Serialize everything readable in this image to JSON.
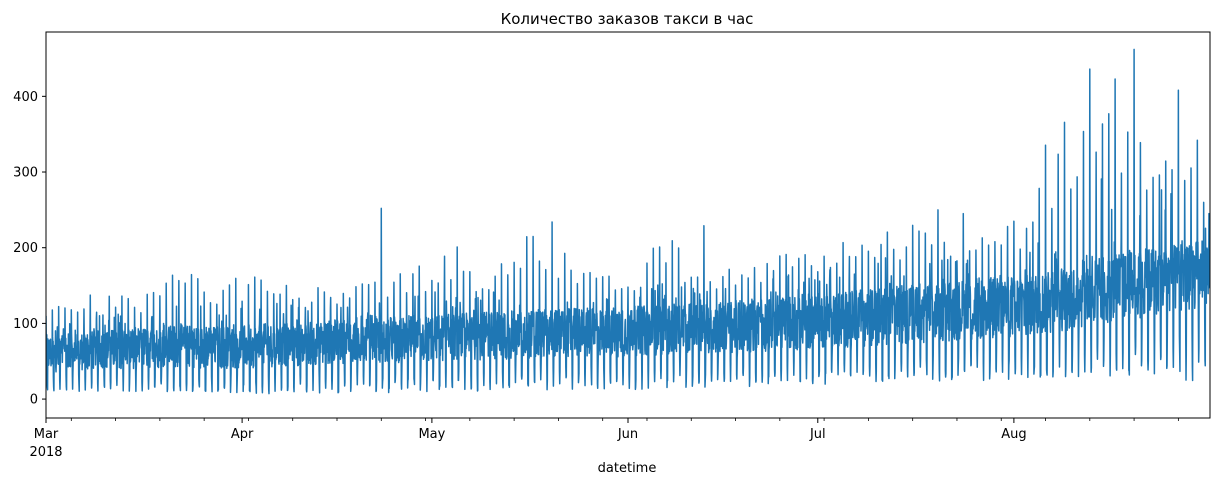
{
  "chart_data": {
    "type": "line",
    "title": "Количество заказов такси в час",
    "xlabel": "datetime",
    "ylabel": "",
    "x_range": [
      "2018-03-01",
      "2018-08-31"
    ],
    "ylim": [
      -25,
      485
    ],
    "y_ticks": [
      0,
      100,
      200,
      300,
      400
    ],
    "x_major_ticks": [
      {
        "date": "2018-03-01",
        "label": "Mar",
        "sublabel": "2018"
      },
      {
        "date": "2018-04-01",
        "label": "Apr"
      },
      {
        "date": "2018-05-01",
        "label": "May"
      },
      {
        "date": "2018-06-01",
        "label": "Jun"
      },
      {
        "date": "2018-07-01",
        "label": "Jul"
      },
      {
        "date": "2018-08-01",
        "label": "Aug"
      }
    ],
    "grid": false,
    "legend": "none",
    "series": [
      {
        "color": "#1f77b4",
        "x": [
          "2018-03-01",
          "2018-03-08",
          "2018-03-15",
          "2018-03-22",
          "2018-03-29",
          "2018-04-05",
          "2018-04-12",
          "2018-04-19",
          "2018-04-26",
          "2018-05-03",
          "2018-05-10",
          "2018-05-17",
          "2018-05-24",
          "2018-05-31",
          "2018-06-07",
          "2018-06-14",
          "2018-06-21",
          "2018-06-28",
          "2018-07-05",
          "2018-07-12",
          "2018-07-19",
          "2018-07-26",
          "2018-08-02",
          "2018-08-09",
          "2018-08-16",
          "2018-08-23",
          "2018-08-31"
        ],
        "daily_min": [
          8,
          10,
          10,
          9,
          8,
          7,
          8,
          6,
          9,
          8,
          10,
          12,
          10,
          12,
          14,
          16,
          15,
          18,
          20,
          22,
          22,
          24,
          25,
          28,
          30,
          30,
          20
        ],
        "daily_max": [
          120,
          150,
          138,
          180,
          166,
          176,
          150,
          168,
          172,
          200,
          190,
          235,
          187,
          160,
          230,
          172,
          188,
          210,
          224,
          250,
          235,
          222,
          248,
          435,
          462,
          408,
          342
        ],
        "typical_low": [
          35,
          38,
          40,
          42,
          40,
          42,
          45,
          48,
          48,
          50,
          52,
          54,
          55,
          56,
          58,
          60,
          62,
          65,
          68,
          72,
          75,
          78,
          82,
          90,
          100,
          110,
          120
        ],
        "typical_high": [
          85,
          90,
          95,
          98,
          96,
          100,
          102,
          108,
          110,
          112,
          115,
          118,
          120,
          122,
          125,
          128,
          132,
          138,
          142,
          148,
          155,
          160,
          165,
          175,
          190,
          200,
          210
        ],
        "notable_peaks": [
          {
            "x": "2018-04-23 00:00",
            "y": 252
          },
          {
            "x": "2018-05-05 00:00",
            "y": 201
          },
          {
            "x": "2018-05-20 00:00",
            "y": 234
          },
          {
            "x": "2018-06-13 00:00",
            "y": 229
          },
          {
            "x": "2018-07-20 00:00",
            "y": 250
          },
          {
            "x": "2018-07-24 00:00",
            "y": 245
          },
          {
            "x": "2018-08-13 00:00",
            "y": 436
          },
          {
            "x": "2018-08-20 00:00",
            "y": 462
          },
          {
            "x": "2018-08-27 00:00",
            "y": 408
          },
          {
            "x": "2018-08-30 00:00",
            "y": 342
          }
        ]
      }
    ]
  }
}
